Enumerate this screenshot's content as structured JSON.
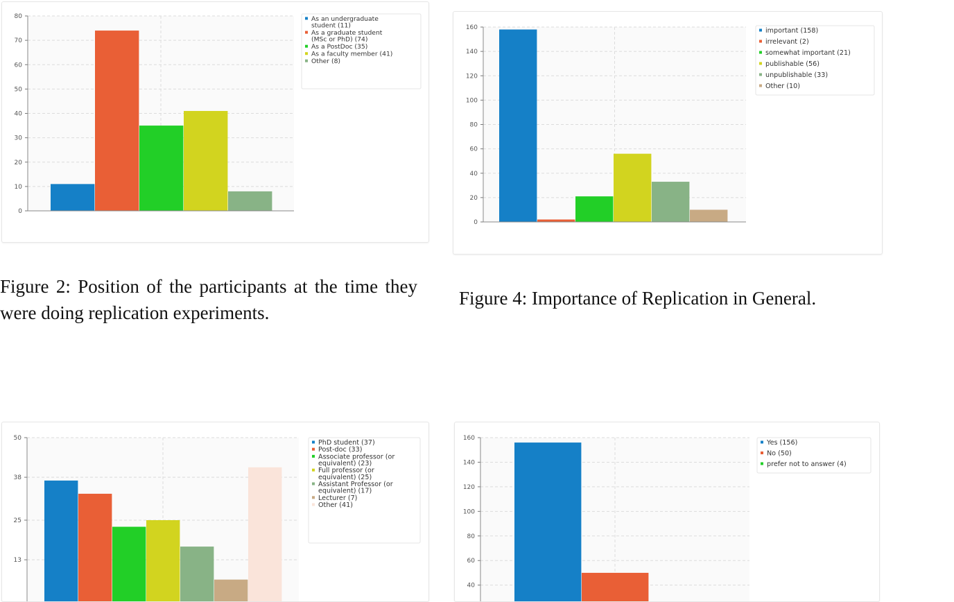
{
  "figures": [
    {
      "caption": "Figure 2: Position of the participants at the time they were doing replication experiments."
    },
    {
      "caption": "Figure 4: Importance of Replication in General."
    }
  ],
  "chart_data": [
    {
      "type": "bar",
      "ylim": [
        0,
        80
      ],
      "yticks": [
        0,
        10,
        20,
        30,
        40,
        50,
        60,
        70,
        80
      ],
      "grid": true,
      "legend_position": "top-right",
      "series": [
        {
          "name": "As an undergraduate student (11)",
          "value": 11,
          "color": "#1580c7"
        },
        {
          "name": "As a graduate student (MSc or PhD) (74)",
          "value": 74,
          "color": "#e95f36"
        },
        {
          "name": "As a PostDoc (35)",
          "value": 35,
          "color": "#22cf27"
        },
        {
          "name": "As a faculty member (41)",
          "value": 41,
          "color": "#d2d41f"
        },
        {
          "name": "Other (8)",
          "value": 8,
          "color": "#88b386"
        }
      ]
    },
    {
      "type": "bar",
      "ylim": [
        0,
        160
      ],
      "yticks": [
        0,
        20,
        40,
        60,
        80,
        100,
        120,
        140,
        160
      ],
      "grid": true,
      "legend_position": "top-right",
      "series": [
        {
          "name": "important (158)",
          "value": 158,
          "color": "#1580c7"
        },
        {
          "name": "irrelevant (2)",
          "value": 2,
          "color": "#e95f36"
        },
        {
          "name": "somewhat important (21)",
          "value": 21,
          "color": "#22cf27"
        },
        {
          "name": "publishable (56)",
          "value": 56,
          "color": "#d2d41f"
        },
        {
          "name": "unpublishable (33)",
          "value": 33,
          "color": "#88b386"
        },
        {
          "name": "Other (10)",
          "value": 10,
          "color": "#c8aa84"
        }
      ]
    },
    {
      "type": "bar",
      "ylim": [
        0,
        50
      ],
      "yticks": [
        13,
        25,
        38,
        50
      ],
      "grid": true,
      "legend_position": "top-right",
      "series": [
        {
          "name": "PhD student (37)",
          "value": 37,
          "color": "#1580c7"
        },
        {
          "name": "Post-doc (33)",
          "value": 33,
          "color": "#e95f36"
        },
        {
          "name": "Associate professor (or equivalent) (23)",
          "value": 23,
          "color": "#22cf27"
        },
        {
          "name": "Full professor (or equivalent) (25)",
          "value": 25,
          "color": "#d2d41f"
        },
        {
          "name": "Assistant Professor (or equivalent) (17)",
          "value": 17,
          "color": "#88b386"
        },
        {
          "name": "Lecturer (7)",
          "value": 7,
          "color": "#c8aa84"
        },
        {
          "name": "Other (41)",
          "value": 41,
          "color": "#fae4da"
        }
      ]
    },
    {
      "type": "bar",
      "ylim": [
        0,
        160
      ],
      "yticks": [
        40,
        60,
        80,
        100,
        120,
        140,
        160
      ],
      "grid": true,
      "legend_position": "top-right",
      "series": [
        {
          "name": "Yes (156)",
          "value": 156,
          "color": "#1580c7"
        },
        {
          "name": "No (50)",
          "value": 50,
          "color": "#e95f36"
        },
        {
          "name": "prefer not to answer (4)",
          "value": 4,
          "color": "#22cf27"
        }
      ]
    }
  ]
}
